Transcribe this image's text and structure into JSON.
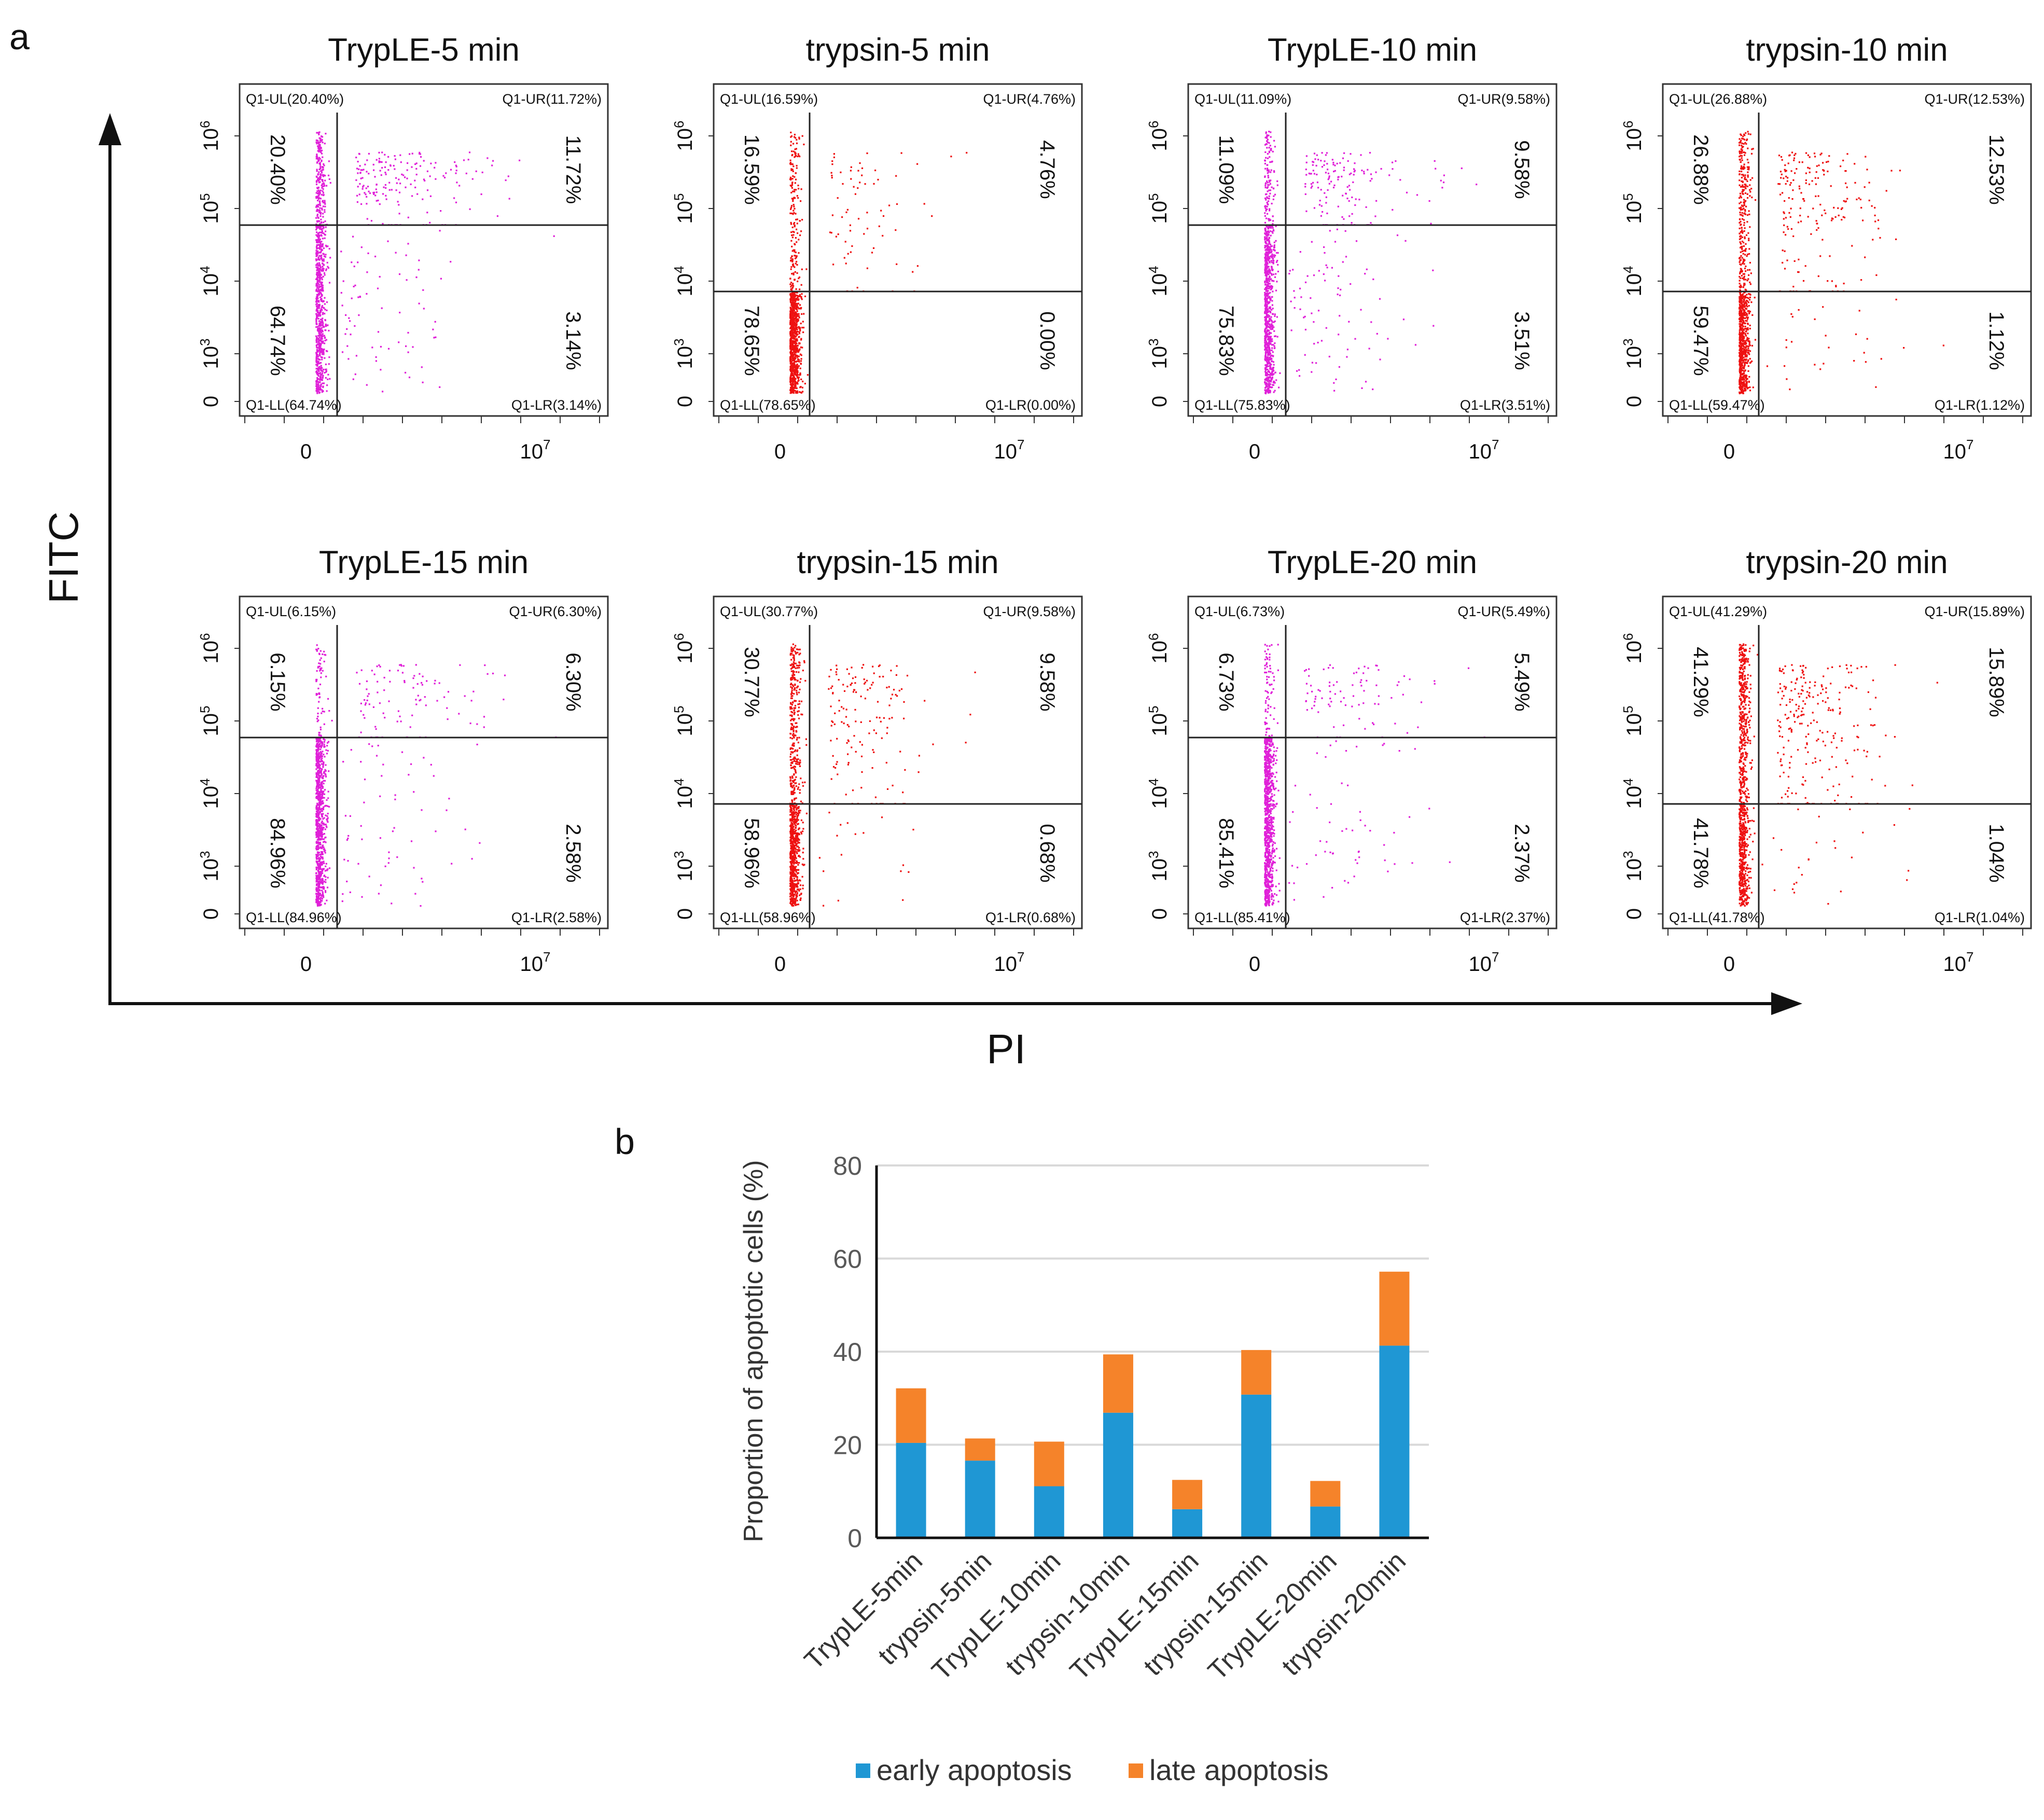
{
  "panel_a": {
    "letter": "a",
    "y_axis_title": "FITC",
    "x_axis_title": "PI",
    "plots": [
      {
        "title": "TrypLE-5 min",
        "dot_color": "#e020d8",
        "UL": "20.40%",
        "UR": "11.72%",
        "LL": "64.74%",
        "LR": "3.14%",
        "label_UL": "Q1-UL(20.40%)",
        "label_UR": "Q1-UR(11.72%)",
        "label_LL": "Q1-LL(64.74%)",
        "label_LR": "Q1-LR(3.14%)"
      },
      {
        "title": "trypsin-5 min",
        "dot_color": "#ee1111",
        "UL": "16.59%",
        "UR": "4.76%",
        "LL": "78.65%",
        "LR": "0.00%",
        "label_UL": "Q1-UL(16.59%)",
        "label_UR": "Q1-UR(4.76%)",
        "label_LL": "Q1-LL(78.65%)",
        "label_LR": "Q1-LR(0.00%)"
      },
      {
        "title": "TrypLE-10 min",
        "dot_color": "#e020d8",
        "UL": "11.09%",
        "UR": "9.58%",
        "LL": "75.83%",
        "LR": "3.51%",
        "label_UL": "Q1-UL(11.09%)",
        "label_UR": "Q1-UR(9.58%)",
        "label_LL": "Q1-LL(75.83%)",
        "label_LR": "Q1-LR(3.51%)"
      },
      {
        "title": "trypsin-10 min",
        "dot_color": "#ee1111",
        "UL": "26.88%",
        "UR": "12.53%",
        "LL": "59.47%",
        "LR": "1.12%",
        "label_UL": "Q1-UL(26.88%)",
        "label_UR": "Q1-UR(12.53%)",
        "label_LL": "Q1-LL(59.47%)",
        "label_LR": "Q1-LR(1.12%)"
      },
      {
        "title": "TrypLE-15 min",
        "dot_color": "#e020d8",
        "UL": "6.15%",
        "UR": "6.30%",
        "LL": "84.96%",
        "LR": "2.58%",
        "label_UL": "Q1-UL(6.15%)",
        "label_UR": "Q1-UR(6.30%)",
        "label_LL": "Q1-LL(84.96%)",
        "label_LR": "Q1-LR(2.58%)"
      },
      {
        "title": "trypsin-15 min",
        "dot_color": "#ee1111",
        "UL": "30.77%",
        "UR": "9.58%",
        "LL": "58.96%",
        "LR": "0.68%",
        "label_UL": "Q1-UL(30.77%)",
        "label_UR": "Q1-UR(9.58%)",
        "label_LL": "Q1-LL(58.96%)",
        "label_LR": "Q1-LR(0.68%)"
      },
      {
        "title": "TrypLE-20 min",
        "dot_color": "#e020d8",
        "UL": "6.73%",
        "UR": "5.49%",
        "LL": "85.41%",
        "LR": "2.37%",
        "label_UL": "Q1-UL(6.73%)",
        "label_UR": "Q1-UR(5.49%)",
        "label_LL": "Q1-LL(85.41%)",
        "label_LR": "Q1-LR(2.37%)"
      },
      {
        "title": "trypsin-20 min",
        "dot_color": "#ee1111",
        "UL": "41.29%",
        "UR": "15.89%",
        "LL": "41.78%",
        "LR": "1.04%",
        "label_UL": "Q1-UL(41.29%)",
        "label_UR": "Q1-UR(15.89%)",
        "label_LL": "Q1-LL(41.78%)",
        "label_LR": "Q1-LR(1.04%)"
      }
    ],
    "y_ticks": [
      "0",
      "10",
      "10",
      "10",
      "10"
    ],
    "y_tick_exponents": [
      "",
      "3",
      "4",
      "5",
      "6"
    ],
    "x_ticks": [
      "0",
      "10"
    ],
    "x_tick_exponents": [
      "",
      "7"
    ]
  },
  "panel_b": {
    "letter": "b"
  },
  "chart_data": {
    "type": "bar",
    "stacked": true,
    "categories": [
      "TrypLE-5min",
      "trypsin-5min",
      "TrypLE-10min",
      "trypsin-10min",
      "TrypLE-15min",
      "trypsin-15min",
      "TrypLE-20min",
      "trypsin-20min"
    ],
    "series": [
      {
        "name": "early apoptosis",
        "color": "#1f97d4",
        "values": [
          20.4,
          16.59,
          11.09,
          26.88,
          6.15,
          30.77,
          6.73,
          41.29
        ]
      },
      {
        "name": "late apoptosis",
        "color": "#f5832a",
        "values": [
          11.72,
          4.76,
          9.58,
          12.53,
          6.3,
          9.58,
          5.49,
          15.89
        ]
      }
    ],
    "ylabel": "Proportion of  apoptotic cells  (%)",
    "ylim": [
      0,
      80
    ],
    "yticks": [
      0,
      20,
      40,
      60,
      80
    ],
    "grid": true,
    "legend": "bottom"
  }
}
